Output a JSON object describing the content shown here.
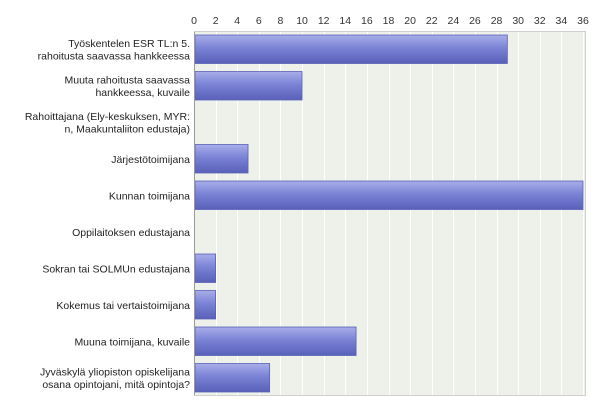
{
  "chart_data": {
    "type": "bar",
    "orientation": "horizontal",
    "categories": [
      [
        "Työskentelen ESR TL:n 5.",
        "rahoitusta saavassa hankkeessa"
      ],
      [
        "Muuta rahoitusta saavassa",
        "hankkeessa, kuvaile"
      ],
      [
        "Rahoittajana (Ely-keskuksen, MYR:",
        "n, Maakuntaliiton edustaja)"
      ],
      [
        "Järjestötoimijana"
      ],
      [
        "Kunnan toimijana"
      ],
      [
        "Oppilaitoksen edustajana"
      ],
      [
        "Sokran tai SOLMUn edustajana"
      ],
      [
        "Kokemus tai vertaistoimijana"
      ],
      [
        "Muuna toimijana, kuvaile"
      ],
      [
        "Jyväskylä yliopiston opiskelijana",
        "osana opintojani, mitä opintoja?"
      ]
    ],
    "values": [
      29,
      10,
      0,
      5,
      36,
      0,
      2,
      2,
      15,
      7
    ],
    "xlim": [
      0,
      36
    ],
    "ticks": [
      "0",
      "2",
      "4",
      "6",
      "8",
      "10",
      "12",
      "14",
      "16",
      "18",
      "20",
      "22",
      "24",
      "26",
      "28",
      "30",
      "32",
      "34",
      "36"
    ],
    "grid": true,
    "colors": {
      "bar": "#7b83d6",
      "bar_dark": "#5860b8",
      "bar_light": "#a8aee8",
      "plot_bg": "#eef1ea",
      "grid": "#ffffff",
      "axis": "#9a9a9a"
    }
  }
}
